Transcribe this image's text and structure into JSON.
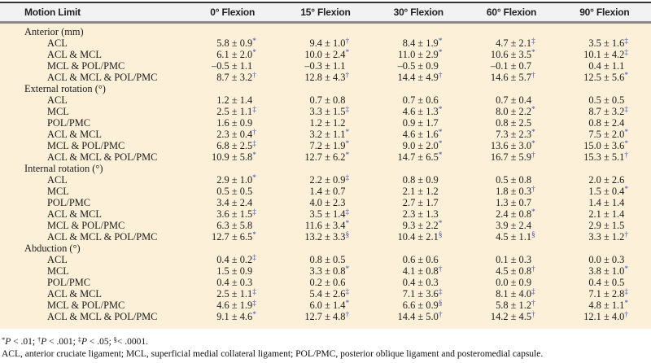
{
  "colors": {
    "symbol_accent": "#4150b8",
    "table_body_background": "#fcf1d8",
    "header_background": "#f2f2f2",
    "top_rule": "#333333",
    "header_rule": "#8a8a8a"
  },
  "table": {
    "header": [
      "Motion Limit",
      "0° Flexion",
      "15° Flexion",
      "30° Flexion",
      "60° Flexion",
      "90° Flexion"
    ],
    "sections": [
      {
        "label": "Anterior (mm)",
        "rows": [
          {
            "label": "ACL",
            "cells": [
              [
                "5.8 ± 0.9",
                "*"
              ],
              [
                "9.4 ± 1.0",
                "†"
              ],
              [
                "8.4 ± 1.9",
                "*"
              ],
              [
                "4.7 ± 2.1",
                "‡"
              ],
              [
                "3.5 ± 1.6",
                "‡"
              ]
            ]
          },
          {
            "label": "ACL & MCL",
            "cells": [
              [
                "6.1 ± 2.0",
                "*"
              ],
              [
                "10.0 ± 2.4",
                "*"
              ],
              [
                "11.0 ± 2.9",
                "*"
              ],
              [
                "10.6 ± 3.5",
                "*"
              ],
              [
                "10.1 ± 4.2",
                "‡"
              ]
            ]
          },
          {
            "label": "MCL & POL/PMC",
            "cells": [
              [
                "–0.5 ± 1.1",
                ""
              ],
              [
                "–0.3 ± 1.1",
                ""
              ],
              [
                "–0.5 ± 0.9",
                ""
              ],
              [
                "–0.1 ± 0.7",
                ""
              ],
              [
                "0.4 ± 1.1",
                ""
              ]
            ]
          },
          {
            "label": "ACL & MCL & POL/PMC",
            "cells": [
              [
                "8.7 ± 3.2",
                "†"
              ],
              [
                "12.8 ± 4.3",
                "†"
              ],
              [
                "14.4 ± 4.9",
                "†"
              ],
              [
                "14.6 ± 5.7",
                "†"
              ],
              [
                "12.5 ± 5.6",
                "*"
              ]
            ]
          }
        ]
      },
      {
        "label": "External rotation (°)",
        "rows": [
          {
            "label": "ACL",
            "cells": [
              [
                "1.2 ± 1.4",
                ""
              ],
              [
                "0.7 ± 0.8",
                ""
              ],
              [
                "0.7 ± 0.6",
                ""
              ],
              [
                "0.7 ± 0.4",
                ""
              ],
              [
                "0.5 ± 0.5",
                ""
              ]
            ]
          },
          {
            "label": "MCL",
            "cells": [
              [
                "2.5 ± 1.1",
                "‡"
              ],
              [
                "3.3 ± 1.5",
                "‡"
              ],
              [
                "4.6 ± 1.3",
                "*"
              ],
              [
                "8.0 ± 2.2",
                "*"
              ],
              [
                "8.7 ± 3.2",
                "‡"
              ]
            ]
          },
          {
            "label": "POL/PMC",
            "cells": [
              [
                "1.6 ± 0.9",
                ""
              ],
              [
                "1.2 ± 1.2",
                ""
              ],
              [
                "0.9 ± 1.7",
                ""
              ],
              [
                "0.8 ± 2.5",
                ""
              ],
              [
                "0.8 ± 2.4",
                ""
              ]
            ]
          },
          {
            "label": "ACL & MCL",
            "cells": [
              [
                "2.3 ± 0.4",
                "†"
              ],
              [
                "3.2 ± 1.1",
                "*"
              ],
              [
                "4.6 ± 1.6",
                "*"
              ],
              [
                "7.3 ± 2.3",
                "*"
              ],
              [
                "7.5 ± 2.0",
                "*"
              ]
            ]
          },
          {
            "label": "MCL & POL/PMC",
            "cells": [
              [
                "6.8 ± 2.5",
                "‡"
              ],
              [
                "7.2 ± 1.9",
                "*"
              ],
              [
                "9.0 ± 2.0",
                "*"
              ],
              [
                "13.6 ± 3.0",
                "*"
              ],
              [
                "15.0 ± 3.6",
                "*"
              ]
            ]
          },
          {
            "label": "ACL & MCL & POL/PMC",
            "cells": [
              [
                "10.9 ± 5.8",
                "*"
              ],
              [
                "12.7 ± 6.2",
                "*"
              ],
              [
                "14.7 ± 6.5",
                "*"
              ],
              [
                "16.7 ± 5.9",
                "†"
              ],
              [
                "15.3 ± 5.1",
                "†"
              ]
            ]
          }
        ]
      },
      {
        "label": "Internal rotation (°)",
        "rows": [
          {
            "label": "ACL",
            "cells": [
              [
                "2.9 ± 1.0",
                "*"
              ],
              [
                "2.2 ± 0.9",
                "‡"
              ],
              [
                "0.8 ± 0.9",
                ""
              ],
              [
                "0.5 ± 0.8",
                ""
              ],
              [
                "2.0 ± 2.6",
                ""
              ]
            ]
          },
          {
            "label": "MCL",
            "cells": [
              [
                "0.5 ± 0.5",
                ""
              ],
              [
                "1.4 ± 0.7",
                ""
              ],
              [
                "2.1 ± 1.2",
                ""
              ],
              [
                "1.8 ± 0.3",
                "†"
              ],
              [
                "1.5 ± 0.4",
                "*"
              ]
            ]
          },
          {
            "label": "POL/PMC",
            "cells": [
              [
                "3.4 ± 2.4",
                ""
              ],
              [
                "4.0 ± 2.3",
                ""
              ],
              [
                "2.7 ± 1.7",
                ""
              ],
              [
                "1.3 ± 0.7",
                ""
              ],
              [
                "1.4 ± 1.4",
                ""
              ]
            ]
          },
          {
            "label": "ACL & MCL",
            "cells": [
              [
                "3.6 ± 1.5",
                "‡"
              ],
              [
                "3.5 ± 1.4",
                "‡"
              ],
              [
                "2.3 ± 1.3",
                ""
              ],
              [
                "2.4 ± 0.8",
                "*"
              ],
              [
                "2.1 ± 1.4",
                ""
              ]
            ]
          },
          {
            "label": "MCL & POL/PMC",
            "cells": [
              [
                "6.3 ± 5.8",
                ""
              ],
              [
                "11.6 ± 3.4",
                "*"
              ],
              [
                "9.3 ± 2.2",
                "*"
              ],
              [
                "3.9 ± 2.4",
                ""
              ],
              [
                "2.9 ± 1.5",
                ""
              ]
            ]
          },
          {
            "label": "ACL & MCL & POL/PMC",
            "cells": [
              [
                "12.7 ± 6.5",
                "*"
              ],
              [
                "13.2 ± 3.3",
                "§"
              ],
              [
                "10.4 ± 2.1",
                "§"
              ],
              [
                "4.5 ± 1.1",
                "§"
              ],
              [
                "3.3 ± 1.2",
                "†"
              ]
            ]
          }
        ]
      },
      {
        "label": "Abduction (°)",
        "rows": [
          {
            "label": "ACL",
            "cells": [
              [
                "0.4 ± 0.2",
                "‡"
              ],
              [
                "0.8 ± 0.5",
                ""
              ],
              [
                "0.6 ± 0.6",
                ""
              ],
              [
                "0.1 ± 0.3",
                ""
              ],
              [
                "0.0 ± 0.3",
                ""
              ]
            ]
          },
          {
            "label": "MCL",
            "cells": [
              [
                "1.5 ± 0.9",
                ""
              ],
              [
                "3.3 ± 0.8",
                "*"
              ],
              [
                "4.1 ± 0.8",
                "†"
              ],
              [
                "4.5 ± 0.8",
                "†"
              ],
              [
                "3.8 ± 1.0",
                "*"
              ]
            ]
          },
          {
            "label": "POL/PMC",
            "cells": [
              [
                "0.4 ± 0.3",
                ""
              ],
              [
                "0.2 ± 0.6",
                ""
              ],
              [
                "0.4 ± 0.3",
                ""
              ],
              [
                "0.0 ± 0.9",
                ""
              ],
              [
                "0.4 ± 0.5",
                ""
              ]
            ]
          },
          {
            "label": "ACL & MCL",
            "cells": [
              [
                "2.5 ± 1.1",
                "‡"
              ],
              [
                "5.4 ± 2.6",
                "‡"
              ],
              [
                "7.1 ± 3.6",
                "‡"
              ],
              [
                "8.1 ± 4.0",
                "‡"
              ],
              [
                "7.1 ± 2.8",
                "‡"
              ]
            ]
          },
          {
            "label": "MCL & POL/PMC",
            "cells": [
              [
                "4.6 ± 1.9",
                "‡"
              ],
              [
                "6.0 ± 1.4",
                "*"
              ],
              [
                "6.6 ± 0.9",
                "§"
              ],
              [
                "5.8 ± 1.2",
                "†"
              ],
              [
                "4.8 ± 1.1",
                "*"
              ]
            ]
          },
          {
            "label": "ACL & MCL & POL/PMC",
            "cells": [
              [
                "9.1 ± 4.6",
                "*"
              ],
              [
                "12.7 ± 4.8",
                "†"
              ],
              [
                "14.4 ± 5.0",
                "†"
              ],
              [
                "14.2 ± 4.5",
                "†"
              ],
              [
                "12.1 ± 4.0",
                "†"
              ]
            ]
          }
        ]
      }
    ]
  },
  "footnotes": {
    "significance": [
      {
        "sup": "*",
        "italic": "P",
        "rest": " < .01; "
      },
      {
        "sup": "†",
        "italic": "P",
        "rest": " < .001; "
      },
      {
        "sup": "‡",
        "italic": "P",
        "rest": " < .05; "
      },
      {
        "sup": "§",
        "italic": "",
        "rest": "< .0001."
      }
    ],
    "abbreviations": "ACL, anterior cruciate ligament; MCL, superficial medial collateral ligament; POL/PMC, posterior oblique ligament and posteromedial capsule."
  }
}
